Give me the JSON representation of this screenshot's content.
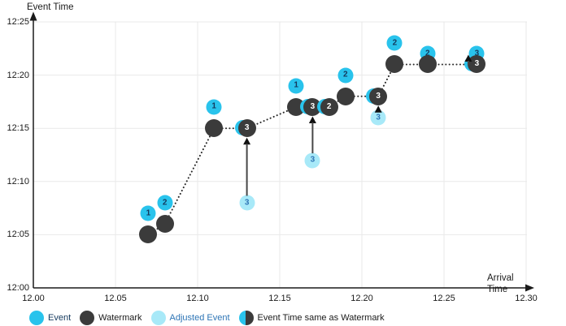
{
  "colors": {
    "event": "#29C3EC",
    "watermark": "#3B3B3B",
    "adjusted_event": "#A8E9F8",
    "event_number": "#14395D",
    "adjusted_number": "#2E75B6",
    "grid": "#E9E9E9",
    "axis": "#1A1A1A",
    "arrow": "#474747",
    "text": "#1A1A1A"
  },
  "chart_data": {
    "type": "scatter",
    "xlabel": "Arrival Time",
    "ylabel": "Event Time",
    "x_ticks": [
      "12.00",
      "12.05",
      "12.10",
      "12.15",
      "12.20",
      "12.25",
      "12.30"
    ],
    "y_ticks": [
      "12:00",
      "12:05",
      "12:10",
      "12:15",
      "12:20",
      "12:25"
    ],
    "x_range": [
      12.0,
      12.3
    ],
    "y_range": [
      "12:00",
      "12:25"
    ],
    "grid": true,
    "legend_position": "bottom",
    "watermark_line": [
      {
        "x": 12.07,
        "t": "12:05"
      },
      {
        "x": 12.08,
        "t": "12:06"
      },
      {
        "x": 12.11,
        "t": "12:15"
      },
      {
        "x": 12.13,
        "t": "12:15"
      },
      {
        "x": 12.16,
        "t": "12:17"
      },
      {
        "x": 12.17,
        "t": "12:17"
      },
      {
        "x": 12.18,
        "t": "12:17"
      },
      {
        "x": 12.19,
        "t": "12:18"
      },
      {
        "x": 12.21,
        "t": "12:18"
      },
      {
        "x": 12.22,
        "t": "12:21"
      },
      {
        "x": 12.24,
        "t": "12:21"
      },
      {
        "x": 12.27,
        "t": "12:21"
      }
    ],
    "points": [
      {
        "kind": "event",
        "id": "1",
        "x": 12.07,
        "t": "12:07"
      },
      {
        "kind": "event",
        "id": "2",
        "x": 12.08,
        "t": "12:08"
      },
      {
        "kind": "event",
        "id": "1",
        "x": 12.11,
        "t": "12:17"
      },
      {
        "kind": "event",
        "id": "1",
        "x": 12.16,
        "t": "12:19"
      },
      {
        "kind": "event",
        "id": "2",
        "x": 12.19,
        "t": "12:20"
      },
      {
        "kind": "event",
        "id": "2",
        "x": 12.22,
        "t": "12:23"
      },
      {
        "kind": "event",
        "id": "2",
        "x": 12.24,
        "t": "12:22"
      },
      {
        "kind": "event",
        "id": "3",
        "x": 12.27,
        "t": "12:22"
      },
      {
        "kind": "watermark",
        "x": 12.07,
        "t": "12:05"
      },
      {
        "kind": "watermark",
        "x": 12.08,
        "t": "12:06"
      },
      {
        "kind": "watermark",
        "x": 12.11,
        "t": "12:15"
      },
      {
        "kind": "watermark",
        "x": 12.16,
        "t": "12:17"
      },
      {
        "kind": "watermark",
        "x": 12.19,
        "t": "12:18"
      },
      {
        "kind": "watermark",
        "x": 12.22,
        "t": "12:21"
      },
      {
        "kind": "watermark",
        "x": 12.24,
        "t": "12:21"
      },
      {
        "kind": "adjusted",
        "id": "3",
        "x": 12.13,
        "t": "12:08",
        "adjusted_to": "12:15"
      },
      {
        "kind": "adjusted",
        "id": "3",
        "x": 12.17,
        "t": "12:12",
        "adjusted_to": "12:17"
      },
      {
        "kind": "adjusted",
        "id": "3",
        "x": 12.21,
        "t": "12:16",
        "adjusted_to": "12:18"
      },
      {
        "kind": "same",
        "id": "3",
        "x": 12.13,
        "t": "12:15"
      },
      {
        "kind": "same",
        "id": "3",
        "x": 12.17,
        "t": "12:17"
      },
      {
        "kind": "same",
        "id": "2",
        "x": 12.18,
        "t": "12:17"
      },
      {
        "kind": "same",
        "id": "3",
        "x": 12.21,
        "t": "12:18"
      },
      {
        "kind": "same",
        "id": "3",
        "x": 12.27,
        "t": "12:21",
        "mini_arrow": true
      }
    ]
  },
  "legend": {
    "items": [
      {
        "label": "Event",
        "kind": "event"
      },
      {
        "label": "Watermark",
        "kind": "watermark"
      },
      {
        "label": "Adjusted Event",
        "kind": "adjusted"
      },
      {
        "label": "Event Time same as Watermark",
        "kind": "same"
      }
    ]
  }
}
